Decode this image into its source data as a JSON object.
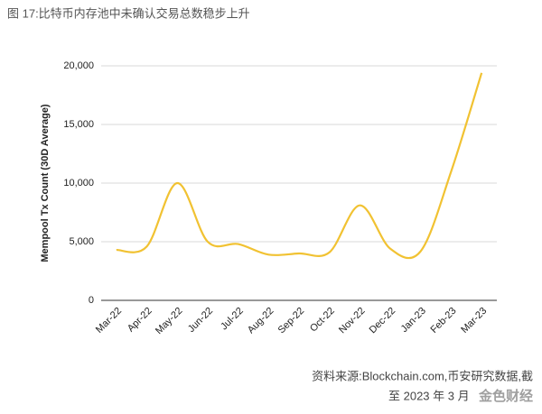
{
  "chart_data": {
    "type": "line",
    "title": "图 17:比特币内存池中未确认交易总数稳步上升",
    "y_label": "Mempool Tx Count (30D Average)",
    "categories": [
      "Mar-22",
      "Apr-22",
      "May-22",
      "Jun-22",
      "Jul-22",
      "Aug-22",
      "Sep-22",
      "Oct-22",
      "Nov-22",
      "Dec-22",
      "Jan-23",
      "Feb-23",
      "Mar-23"
    ],
    "series": [
      {
        "name": "Mempool Tx Count (30D Average)",
        "color": "#f1c232",
        "values": [
          4300,
          4600,
          10000,
          5000,
          4800,
          3900,
          4000,
          4100,
          8100,
          4400,
          4200,
          11000,
          19400
        ]
      }
    ],
    "ylim": [
      0,
      20000
    ],
    "yticks": [
      0,
      {
        "value": 5000,
        "label": "5,000"
      },
      {
        "value": 10000,
        "label": "10,000"
      },
      {
        "value": 15000,
        "label": "15,000"
      },
      {
        "value": 20000,
        "label": "20,000"
      }
    ],
    "grid": true,
    "source": [
      "资料来源:Blockchain.com,币安研究数据,截",
      "至 2023 年 3 月"
    ],
    "watermark": "金色财经"
  }
}
